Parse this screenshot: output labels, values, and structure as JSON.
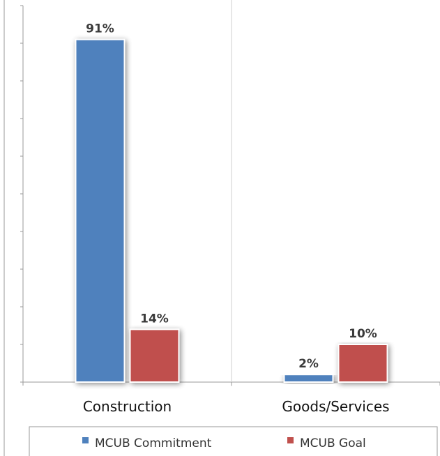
{
  "chart_data": {
    "type": "bar",
    "categories": [
      "Construction",
      "Goods/Services"
    ],
    "series": [
      {
        "name": "MCUB Commitment",
        "values": [
          91,
          2
        ],
        "labels": [
          "91%",
          "2%"
        ]
      },
      {
        "name": "MCUB Goal",
        "values": [
          14,
          10
        ],
        "labels": [
          "14%",
          "10%"
        ]
      }
    ],
    "ylim": [
      0,
      100
    ],
    "grid": false,
    "legend": "bottom",
    "colors": {
      "MCUB Commitment": "#4f81bd",
      "MCUB Goal": "#c0504d"
    }
  }
}
